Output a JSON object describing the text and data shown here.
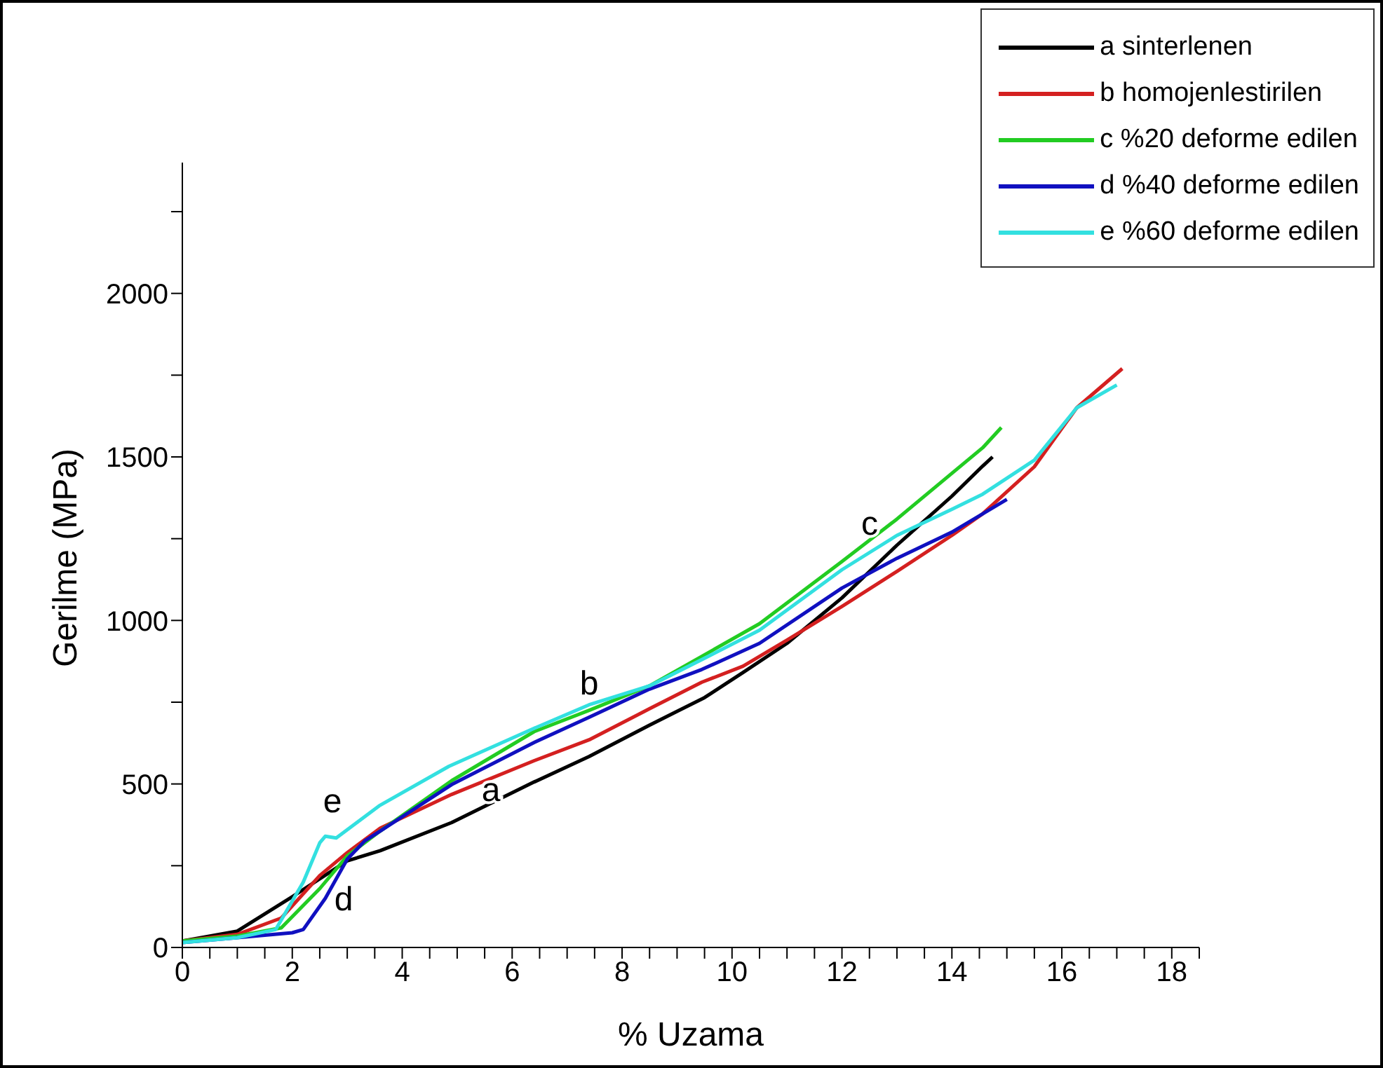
{
  "chart_data": {
    "type": "line",
    "xlabel": "% Uzama",
    "ylabel": "Gerilme (MPa)",
    "xlim": [
      0,
      18.5
    ],
    "ylim": [
      0,
      2400
    ],
    "xticks": [
      0,
      {
        "value": 0.5,
        "label": null
      },
      2,
      {
        "value": 1,
        "label": null
      },
      {
        "value": 1.5,
        "label": null
      },
      {
        "value": 2.5,
        "label": null
      },
      {
        "value": 3,
        "label": null
      },
      {
        "value": 3.5,
        "label": null
      },
      4,
      {
        "value": 4.5,
        "label": null
      },
      {
        "value": 5,
        "label": null
      },
      {
        "value": 5.5,
        "label": null
      },
      6,
      {
        "value": 6.5,
        "label": null
      },
      {
        "value": 7,
        "label": null
      },
      {
        "value": 7.5,
        "label": null
      },
      8,
      {
        "value": 8.5,
        "label": null
      },
      {
        "value": 9,
        "label": null
      },
      {
        "value": 9.5,
        "label": null
      },
      10,
      {
        "value": 10.5,
        "label": null
      },
      {
        "value": 11,
        "label": null
      },
      {
        "value": 11.5,
        "label": null
      },
      12,
      {
        "value": 12.5,
        "label": null
      },
      {
        "value": 13,
        "label": null
      },
      {
        "value": 13.5,
        "label": null
      },
      14,
      {
        "value": 14.5,
        "label": null
      },
      {
        "value": 15,
        "label": null
      },
      {
        "value": 15.5,
        "label": null
      },
      16,
      {
        "value": 16.5,
        "label": null
      },
      {
        "value": 17,
        "label": null
      },
      {
        "value": 17.5,
        "label": null
      },
      18,
      {
        "value": 18.5,
        "label": null
      }
    ],
    "yticks": [
      0,
      {
        "value": 250,
        "label": null
      },
      500,
      {
        "value": 750,
        "label": null
      },
      1000,
      {
        "value": 1250,
        "label": null
      },
      1500,
      {
        "value": 1750,
        "label": null
      },
      2000,
      {
        "value": 2250,
        "label": null
      }
    ],
    "grid": false,
    "legend": "top right",
    "marker": "none",
    "line_style": "solid",
    "series": [
      {
        "name": "a sinterlenen",
        "color": "#000000",
        "x": [
          0,
          1,
          2,
          3,
          3.6,
          4.9,
          6.4,
          7.4,
          8.5,
          9.5,
          10.2,
          11,
          12,
          13,
          14,
          14.56,
          14.74
        ],
        "values": [
          20,
          50,
          155,
          265,
          296,
          382,
          506,
          584,
          680,
          764,
          841,
          930,
          1069,
          1230,
          1380,
          1472,
          1500
        ]
      },
      {
        "name": "b homojenlestirilen",
        "color": "#d42020",
        "x": [
          0,
          1,
          1.8,
          2.5,
          3,
          3.6,
          4.9,
          6.4,
          7.4,
          8.5,
          9.45,
          10.2,
          11,
          12,
          13,
          14,
          14.56,
          15.5,
          16.27,
          17.1
        ],
        "values": [
          20,
          40,
          90,
          220,
          290,
          365,
          468,
          571,
          635,
          730,
          811,
          860,
          940,
          1043,
          1150,
          1260,
          1326,
          1470,
          1650,
          1770
        ]
      },
      {
        "name": "c %20 deforme edilen",
        "color": "#22cc22",
        "x": [
          0,
          1,
          1.8,
          2.5,
          3,
          3.6,
          4.9,
          6.4,
          7.4,
          8.5,
          9.45,
          10.5,
          12,
          13,
          14,
          14.56,
          14.9
        ],
        "values": [
          20,
          35,
          60,
          180,
          280,
          356,
          510,
          660,
          725,
          800,
          890,
          990,
          1180,
          1310,
          1450,
          1528,
          1590
        ]
      },
      {
        "name": "d %40 deforme edilen",
        "color": "#1010c0",
        "x": [
          0,
          1,
          2,
          2.2,
          2.6,
          3,
          3.32,
          3.6,
          4.9,
          6.4,
          7.4,
          8.5,
          9.45,
          10.5,
          12,
          13,
          14,
          15
        ],
        "values": [
          15,
          30,
          45,
          55,
          150,
          270,
          326,
          356,
          498,
          627,
          704,
          790,
          850,
          930,
          1099,
          1190,
          1270,
          1370
        ]
      },
      {
        "name": "e %60 deforme edilen",
        "color": "#33e0e0",
        "x": [
          0,
          1,
          1.7,
          2.2,
          2.5,
          2.6,
          2.8,
          3,
          3.58,
          4.85,
          6.4,
          7.4,
          8.5,
          9.45,
          10.5,
          12,
          13,
          14,
          14.56,
          15.5,
          16.27,
          17
        ],
        "values": [
          15,
          30,
          55,
          200,
          320,
          340,
          335,
          360,
          433,
          554,
          670,
          742,
          800,
          880,
          970,
          1155,
          1260,
          1340,
          1386,
          1490,
          1650,
          1720
        ]
      }
    ],
    "annotations": [
      "a",
      "b",
      "c",
      "d",
      "e"
    ]
  }
}
